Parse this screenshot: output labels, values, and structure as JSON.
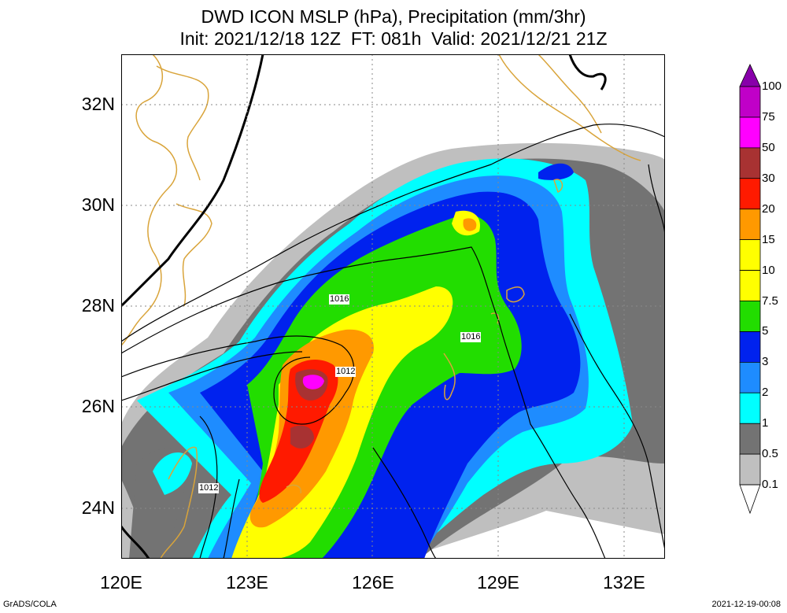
{
  "title_line1": "DWD ICON MSLP (hPa), Precipitation (mm/3hr)",
  "title_line2": "Init: 2021/12/18 12Z  FT: 081h  Valid: 2021/12/21 21Z",
  "x_ticks": [
    "120E",
    "123E",
    "126E",
    "129E",
    "132E"
  ],
  "y_ticks": [
    "32N",
    "30N",
    "28N",
    "26N",
    "24N"
  ],
  "isobar_labels": [
    "1016",
    "1016",
    "1012",
    "1012"
  ],
  "legend": {
    "levels": [
      "100",
      "75",
      "50",
      "30",
      "20",
      "15",
      "10",
      "7.5",
      "5",
      "3",
      "2",
      "1",
      "0.5",
      "0.1"
    ],
    "colors": [
      "#8800aa",
      "#c000c8",
      "#ff00ff",
      "#a83232",
      "#ff1a00",
      "#ff9900",
      "#ffff00",
      "#ffff00",
      "#22dd00",
      "#0022ee",
      "#1e8cff",
      "#00ffff",
      "#737373",
      "#bfbfbf",
      "#ffffff"
    ]
  },
  "footer_left": "GrADS/COLA",
  "footer_right": "2021-12-19-00:08",
  "colors": {
    "coast": "#d9a43a",
    "isobar": "#000000",
    "grid": "#888888"
  }
}
